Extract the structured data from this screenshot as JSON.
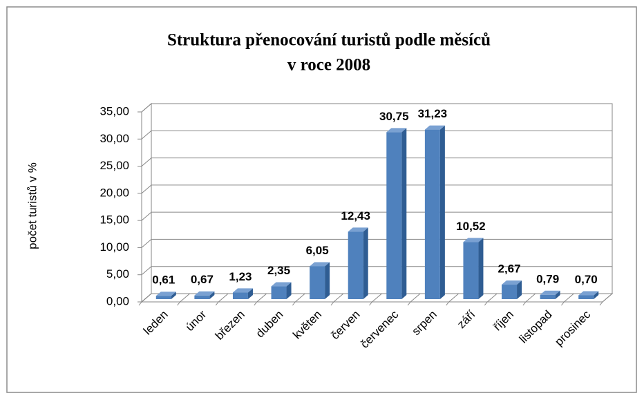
{
  "chart_data": {
    "type": "bar",
    "title": [
      "Struktura přenocování turistů podle měsíců",
      "v roce 2008"
    ],
    "y_label": "počet turistů v %",
    "categories": [
      "leden",
      "únor",
      "březen",
      "duben",
      "květen",
      "červen",
      "červenec",
      "srpen",
      "září",
      "říjen",
      "listopad",
      "prosinec"
    ],
    "values": [
      0.61,
      0.67,
      1.23,
      2.35,
      6.05,
      12.43,
      30.75,
      31.23,
      10.52,
      2.67,
      0.79,
      0.7
    ],
    "value_labels": [
      "0,61",
      "0,67",
      "1,23",
      "2,35",
      "6,05",
      "12,43",
      "30,75",
      "31,23",
      "10,52",
      "2,67",
      "0,79",
      "0,70"
    ],
    "color": "#4f81bd",
    "ylim": [
      0,
      35
    ],
    "yticks": [
      {
        "value": 0,
        "label": "0,00"
      },
      {
        "value": 5,
        "label": "5,00"
      },
      {
        "value": 10,
        "label": "10,00"
      },
      {
        "value": 15,
        "label": "15,00"
      },
      {
        "value": 20,
        "label": "20,00"
      },
      {
        "value": 25,
        "label": "25,00"
      },
      {
        "value": 30,
        "label": "30,00"
      },
      {
        "value": 35,
        "label": "35,00"
      }
    ],
    "grid": true
  }
}
